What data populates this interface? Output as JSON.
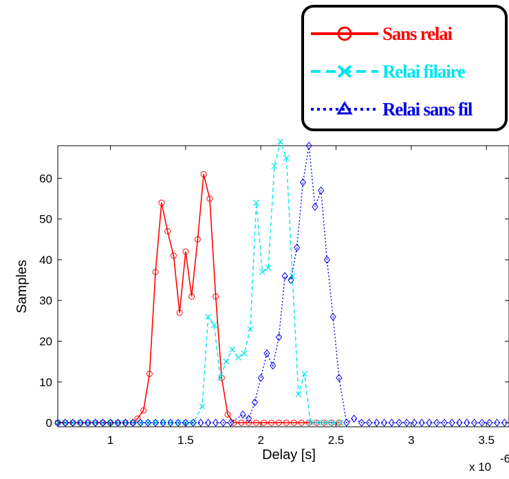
{
  "chart_data": {
    "type": "line",
    "xlabel": "Delay [s]",
    "ylabel": "Samples",
    "x_exponent_label": "x 10",
    "x_exponent_power": "-6",
    "xlim": [
      0.65,
      3.65
    ],
    "ylim": [
      -1,
      68
    ],
    "xticks": [
      1,
      1.5,
      2,
      2.5,
      3,
      3.5
    ],
    "xtick_labels": [
      "1",
      "1.5",
      "2",
      "2.5",
      "3",
      "3.5"
    ],
    "yticks": [
      0,
      10,
      20,
      30,
      40,
      50,
      60
    ],
    "ytick_labels": [
      "0",
      "10",
      "20",
      "30",
      "40",
      "50",
      "60"
    ],
    "legend_position": "top-right",
    "series": [
      {
        "name": "Sans relai",
        "color": "#ff0000",
        "line_style": "solid",
        "marker": "circle",
        "points": [
          [
            0.65,
            0
          ],
          [
            0.7,
            0
          ],
          [
            0.75,
            0
          ],
          [
            0.8,
            0
          ],
          [
            0.85,
            0
          ],
          [
            0.9,
            0
          ],
          [
            0.95,
            0
          ],
          [
            1.0,
            0
          ],
          [
            1.05,
            0
          ],
          [
            1.1,
            0
          ],
          [
            1.15,
            0
          ],
          [
            1.18,
            1
          ],
          [
            1.22,
            3
          ],
          [
            1.26,
            12
          ],
          [
            1.3,
            37
          ],
          [
            1.34,
            54
          ],
          [
            1.38,
            47
          ],
          [
            1.42,
            41
          ],
          [
            1.46,
            27
          ],
          [
            1.5,
            42
          ],
          [
            1.54,
            31
          ],
          [
            1.58,
            45
          ],
          [
            1.62,
            61
          ],
          [
            1.66,
            55
          ],
          [
            1.7,
            31
          ],
          [
            1.74,
            11
          ],
          [
            1.78,
            2
          ],
          [
            1.82,
            0
          ],
          [
            1.87,
            0
          ],
          [
            1.92,
            0
          ],
          [
            1.97,
            0
          ],
          [
            2.02,
            0
          ],
          [
            2.07,
            0
          ],
          [
            2.12,
            0
          ],
          [
            2.17,
            0
          ],
          [
            2.22,
            0
          ],
          [
            2.27,
            0
          ],
          [
            2.32,
            0
          ],
          [
            2.37,
            0
          ],
          [
            2.42,
            0
          ],
          [
            2.47,
            0
          ],
          [
            2.52,
            0
          ]
        ]
      },
      {
        "name": "Relai filaire",
        "color": "#00e5ee",
        "line_style": "dashed",
        "marker": "x",
        "points": [
          [
            0.65,
            0
          ],
          [
            0.7,
            0
          ],
          [
            0.75,
            0
          ],
          [
            0.8,
            0
          ],
          [
            0.85,
            0
          ],
          [
            0.9,
            0
          ],
          [
            0.95,
            0
          ],
          [
            1.0,
            0
          ],
          [
            1.05,
            0
          ],
          [
            1.1,
            0
          ],
          [
            1.15,
            0
          ],
          [
            1.2,
            0
          ],
          [
            1.25,
            0
          ],
          [
            1.3,
            0
          ],
          [
            1.35,
            0
          ],
          [
            1.4,
            0
          ],
          [
            1.45,
            0
          ],
          [
            1.5,
            0
          ],
          [
            1.55,
            0
          ],
          [
            1.61,
            4
          ],
          [
            1.65,
            26
          ],
          [
            1.69,
            24
          ],
          [
            1.73,
            11
          ],
          [
            1.77,
            15
          ],
          [
            1.81,
            18
          ],
          [
            1.85,
            16
          ],
          [
            1.89,
            17
          ],
          [
            1.93,
            23
          ],
          [
            1.97,
            54
          ],
          [
            2.01,
            37
          ],
          [
            2.05,
            38
          ],
          [
            2.09,
            63
          ],
          [
            2.13,
            69
          ],
          [
            2.17,
            65
          ],
          [
            2.21,
            36
          ],
          [
            2.25,
            7
          ],
          [
            2.29,
            12
          ],
          [
            2.33,
            0
          ],
          [
            2.38,
            0
          ],
          [
            2.43,
            0
          ],
          [
            2.48,
            0
          ],
          [
            2.53,
            0
          ]
        ]
      },
      {
        "name": "Relai sans fil",
        "color": "#0000e6",
        "line_style": "dotted",
        "marker": "diamond",
        "points": [
          [
            0.65,
            0
          ],
          [
            0.7,
            0
          ],
          [
            0.75,
            0
          ],
          [
            0.8,
            0
          ],
          [
            0.85,
            0
          ],
          [
            0.9,
            0
          ],
          [
            0.95,
            0
          ],
          [
            1.0,
            0
          ],
          [
            1.05,
            0
          ],
          [
            1.1,
            0
          ],
          [
            1.15,
            0
          ],
          [
            1.2,
            0
          ],
          [
            1.25,
            0
          ],
          [
            1.3,
            0
          ],
          [
            1.35,
            0
          ],
          [
            1.4,
            0
          ],
          [
            1.45,
            0
          ],
          [
            1.5,
            0
          ],
          [
            1.55,
            0
          ],
          [
            1.6,
            0
          ],
          [
            1.65,
            0
          ],
          [
            1.7,
            0
          ],
          [
            1.75,
            0
          ],
          [
            1.8,
            0
          ],
          [
            1.88,
            2
          ],
          [
            1.92,
            1
          ],
          [
            1.96,
            5
          ],
          [
            2.0,
            11
          ],
          [
            2.04,
            17
          ],
          [
            2.08,
            14
          ],
          [
            2.12,
            21
          ],
          [
            2.16,
            36
          ],
          [
            2.2,
            35
          ],
          [
            2.24,
            43
          ],
          [
            2.28,
            59
          ],
          [
            2.32,
            68
          ],
          [
            2.36,
            53
          ],
          [
            2.4,
            57
          ],
          [
            2.44,
            40
          ],
          [
            2.48,
            26
          ],
          [
            2.52,
            11
          ],
          [
            2.57,
            0
          ],
          [
            2.62,
            1
          ],
          [
            2.67,
            0
          ],
          [
            2.72,
            0
          ],
          [
            2.77,
            0
          ],
          [
            2.82,
            0
          ],
          [
            2.87,
            0
          ],
          [
            2.92,
            0
          ],
          [
            2.97,
            0
          ],
          [
            3.02,
            0
          ],
          [
            3.07,
            0
          ],
          [
            3.12,
            0
          ],
          [
            3.17,
            0
          ],
          [
            3.22,
            0
          ],
          [
            3.27,
            0
          ],
          [
            3.32,
            0
          ],
          [
            3.37,
            0
          ],
          [
            3.42,
            0
          ],
          [
            3.47,
            0
          ],
          [
            3.52,
            0
          ],
          [
            3.57,
            0
          ],
          [
            3.62,
            0
          ]
        ]
      }
    ]
  }
}
